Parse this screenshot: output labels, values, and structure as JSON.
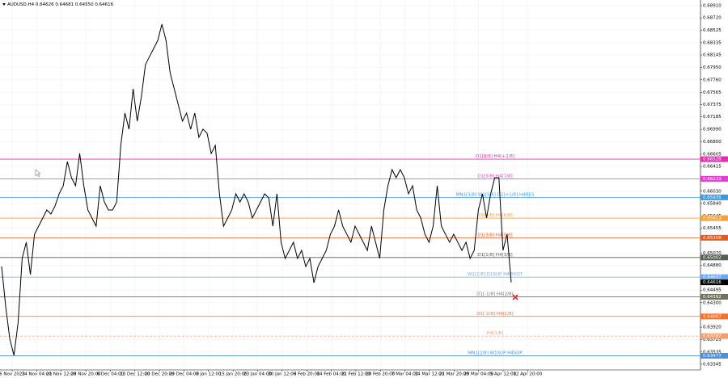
{
  "chart_data": {
    "type": "line",
    "title": "AUDUSD,H4  0.64626 0.64681 0.64550 0.64616",
    "x_labels": [
      "6 Nov 2023",
      "14 Nov 04:00",
      "21 Nov 12:00",
      "28 Nov 20:00",
      "6 Dec 04:00",
      "13 Dec 12:00",
      "20 Dec 20:00",
      "29 Dec 04:00",
      "8 Jan 12:00",
      "15 Jan 20:00",
      "23 Jan 04:00",
      "30 Jan 12:00",
      "6 Feb 20:00",
      "14 Feb 04:00",
      "21 Feb 12:00",
      "28 Feb 20:00",
      "7 Mar 04:00",
      "14 Mar 12:00",
      "21 Mar 20:00",
      "29 Mar 04:00",
      "5 Apr 12:00",
      "12 Apr 20:00"
    ],
    "series": [
      {
        "color": "#000000",
        "values": [
          0.64862,
          0.64235,
          0.63734,
          0.63483,
          0.63984,
          0.64987,
          0.65238,
          0.64736,
          0.65363,
          0.65488,
          0.65614,
          0.65739,
          0.65676,
          0.65802,
          0.6599,
          0.66115,
          0.66491,
          0.6624,
          0.66115,
          0.66617,
          0.66115,
          0.65739,
          0.65614,
          0.65488,
          0.66115,
          0.65863,
          0.65739,
          0.65739,
          0.65863,
          0.66742,
          0.67243,
          0.66993,
          0.67619,
          0.67118,
          0.67494,
          0.67995,
          0.68121,
          0.68246,
          0.68371,
          0.68622,
          0.68371,
          0.6787,
          0.67619,
          0.67369,
          0.67118,
          0.67243,
          0.66993,
          0.67243,
          0.66867,
          0.66993,
          0.6693,
          0.66617,
          0.66742,
          0.6599,
          0.65488,
          0.65614,
          0.65739,
          0.6599,
          0.65863,
          0.6599,
          0.65863,
          0.65614,
          0.65739,
          0.65863,
          0.6599,
          0.65927,
          0.65488,
          0.6599,
          0.65238,
          0.64987,
          0.65112,
          0.65238,
          0.64987,
          0.65112,
          0.64862,
          0.64987,
          0.64611,
          0.64862,
          0.64987,
          0.65112,
          0.65363,
          0.65488,
          0.65739,
          0.65488,
          0.65363,
          0.65238,
          0.65488,
          0.65363,
          0.65238,
          0.65112,
          0.65488,
          0.65238,
          0.64987,
          0.65739,
          0.66115,
          0.66366,
          0.6624,
          0.66366,
          0.6624,
          0.6599,
          0.66115,
          0.65739,
          0.65614,
          0.65363,
          0.65238,
          0.65488,
          0.66115,
          0.65488,
          0.65363,
          0.65238,
          0.65363,
          0.65238,
          0.65112,
          0.65238,
          0.64987,
          0.65112,
          0.65739,
          0.6599,
          0.65614,
          0.6599,
          0.6624,
          0.6624,
          0.65112,
          0.65363,
          0.64616
        ]
      }
    ],
    "levels": [
      {
        "name": "D1[8/8] H4[+2/8]",
        "value": 0.66528,
        "color": "#e030b0"
      },
      {
        "name": "D1[5/8] H4[7/8]",
        "value": 0.66223,
        "color": "#e040d0"
      },
      {
        "name": "MN1[3/8] W1[5/8] D1[+1/8] H4RES",
        "value": 0.65935,
        "color": "#3a9ae0"
      },
      {
        "name": "D1[4/8] H4[6/8]",
        "value": 0.65613,
        "color": "#f5a040"
      },
      {
        "name": "D1[3/8] H4[5/8]",
        "value": 0.65308,
        "color": "#e85a20"
      },
      {
        "name": "D1[1/8] H4[3/8]",
        "value": 0.65002,
        "color": "#556050"
      },
      {
        "name": "W1[1/8] D1SUP H4PIVOT",
        "value": 0.64697,
        "color": "#6aaaf0"
      },
      {
        "name": "D1[-1/8] H4[2/8]",
        "value": 0.64392,
        "color": "#707060"
      },
      {
        "name": "D1[-2/8] H4[1/8]",
        "value": 0.64087,
        "color": "#f07030"
      },
      {
        "name": "H4[1/8]",
        "value": 0.63782,
        "color": "#f0a070",
        "dashed": true
      },
      {
        "name": "MN1[2/8] W1SUP H4SUP",
        "value": 0.63477,
        "color": "#4a90e0"
      }
    ],
    "current_price": 0.64616,
    "ylim": [
      0.63257,
      0.68998
    ],
    "yticks": [
      {
        "value": 0.6891,
        "label": "0.68910"
      },
      {
        "value": 0.6872,
        "label": "0.68720"
      },
      {
        "value": 0.68525,
        "label": "0.68525"
      },
      {
        "value": 0.68335,
        "label": "0.68335"
      },
      {
        "value": 0.68145,
        "label": "0.68145"
      },
      {
        "value": 0.6795,
        "label": "0.67950"
      },
      {
        "value": 0.6776,
        "label": "0.67760"
      },
      {
        "value": 0.67565,
        "label": "0.67565"
      },
      {
        "value": 0.67375,
        "label": "0.67375"
      },
      {
        "value": 0.67185,
        "label": "0.67185"
      },
      {
        "value": 0.6699,
        "label": "0.66990"
      },
      {
        "value": 0.668,
        "label": "0.66800"
      },
      {
        "value": 0.66605,
        "label": "0.66605"
      },
      {
        "value": 0.66415,
        "label": "0.66415"
      },
      {
        "value": 0.6603,
        "label": "0.66030"
      },
      {
        "value": 0.6584,
        "label": "0.65840"
      },
      {
        "value": 0.65645,
        "label": "0.65645"
      },
      {
        "value": 0.65455,
        "label": "0.65455"
      },
      {
        "value": 0.6507,
        "label": "0.65070"
      },
      {
        "value": 0.6488,
        "label": "0.64880"
      },
      {
        "value": 0.64495,
        "label": "0.64495"
      },
      {
        "value": 0.643,
        "label": "0.64300"
      },
      {
        "value": 0.6392,
        "label": "0.63920"
      },
      {
        "value": 0.63725,
        "label": "0.63725"
      },
      {
        "value": 0.63535,
        "label": "0.63535"
      },
      {
        "value": 0.63345,
        "label": "0.63345"
      }
    ],
    "grid": true
  }
}
